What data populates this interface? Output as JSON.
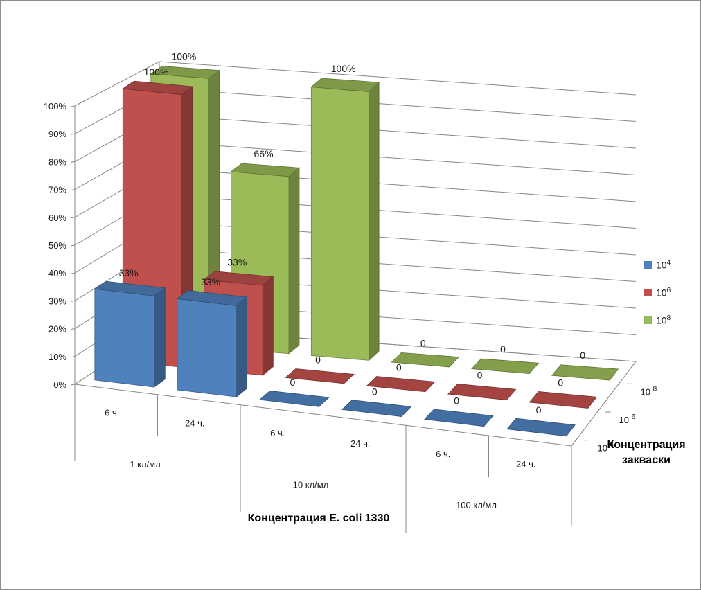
{
  "chart_data": {
    "type": "bar",
    "style": "3d-clustered-column",
    "title": "",
    "xlabel": "Концентрация E. coli 1330",
    "zlabel": [
      "Концентрация",
      "закваски"
    ],
    "ylabel": "",
    "ylim": [
      0,
      100
    ],
    "y_ticks": [
      "0%",
      "10%",
      "20%",
      "30%",
      "40%",
      "50%",
      "60%",
      "70%",
      "80%",
      "90%",
      "100%"
    ],
    "grid": true,
    "legend_position": "right",
    "categories": [
      "6 ч.",
      "24 ч.",
      "6 ч.",
      "24 ч.",
      "6 ч.",
      "24 ч."
    ],
    "category_groups": [
      {
        "label": "1 кл/мл",
        "span": 2
      },
      {
        "label": "10 кл/мл",
        "span": 2
      },
      {
        "label": "100 кл/мл",
        "span": 2
      }
    ],
    "series": [
      {
        "name": "10 4",
        "base": "10",
        "exp": "4",
        "color": "#4f81bd",
        "values": [
          33,
          33,
          0,
          0,
          0,
          0
        ],
        "labels": [
          "33%",
          "33%",
          "0",
          "0",
          "0",
          "0"
        ]
      },
      {
        "name": "10 6",
        "base": "10",
        "exp": "6",
        "color": "#c0504d",
        "values": [
          100,
          33,
          0,
          0,
          0,
          0
        ],
        "labels": [
          "100%",
          "33%",
          "0",
          "0",
          "0",
          "0"
        ]
      },
      {
        "name": "10 8",
        "base": "10",
        "exp": "8",
        "color": "#9bbb59",
        "values": [
          100,
          66,
          100,
          0,
          0,
          0
        ],
        "labels": [
          "100%",
          "66%",
          "100%",
          "0",
          "0",
          "0"
        ]
      }
    ],
    "depth_axis_labels": [
      {
        "base": "10 ",
        "exp": "8"
      },
      {
        "base": "10 ",
        "exp": "6"
      },
      {
        "base": "10 ",
        "exp": "4"
      }
    ]
  }
}
